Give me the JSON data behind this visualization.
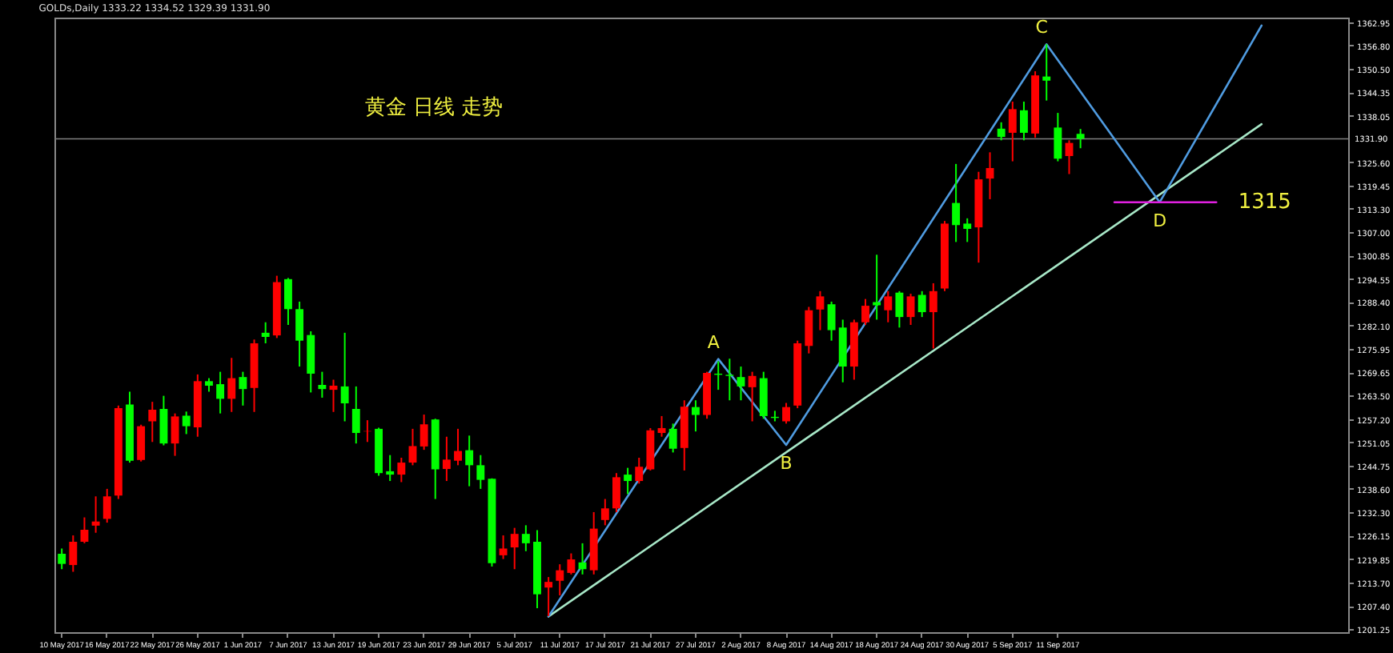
{
  "chart_data": {
    "type": "candlestick",
    "title": "GOLDs,Daily 1333.22 1334.52 1329.39 1331.90",
    "annotations": [
      "黄金 日线 走势",
      "1315",
      {
        "text": "A",
        "y": 1273.2
      },
      {
        "text": "B",
        "y": 1250.3
      },
      {
        "text": "C",
        "y": 1357.1
      },
      {
        "text": "D",
        "y": 1315
      }
    ],
    "categories": [
      "10 May 2017",
      null,
      null,
      null,
      "16 May 2017",
      null,
      null,
      null,
      "22 May 2017",
      null,
      null,
      null,
      "26 May 2017",
      null,
      null,
      null,
      "1 Jun 2017",
      null,
      null,
      null,
      "7 Jun 2017",
      null,
      null,
      null,
      "13 Jun 2017",
      null,
      null,
      null,
      "19 Jun 2017",
      null,
      null,
      null,
      "23 Jun 2017",
      null,
      null,
      null,
      "29 Jun 2017",
      null,
      null,
      null,
      "5 Jul 2017",
      null,
      null,
      null,
      "11 Jul 2017",
      null,
      null,
      null,
      "17 Jul 2017",
      null,
      null,
      null,
      "21 Jul 2017",
      null,
      null,
      null,
      "27 Jul 2017",
      null,
      null,
      null,
      "2 Aug 2017",
      null,
      null,
      null,
      "8 Aug 2017",
      null,
      null,
      null,
      "14 Aug 2017",
      null,
      null,
      null,
      "18 Aug 2017",
      null,
      null,
      null,
      "24 Aug 2017",
      null,
      null,
      null,
      "30 Aug 2017",
      null,
      null,
      null,
      "5 Sep 2017",
      null,
      null,
      null,
      "11 Sep 2017",
      null,
      null,
      null,
      null,
      null,
      null,
      null,
      null,
      null,
      null,
      null,
      null,
      null,
      null,
      null,
      null,
      null,
      null,
      null,
      null,
      null,
      null,
      null,
      null,
      null
    ],
    "ohlc": [
      [
        1221.3,
        1222.7,
        1217.2,
        1218.6
      ],
      [
        1218.3,
        1226.2,
        1216.5,
        1224.5
      ],
      [
        1224.5,
        1231.0,
        1224.1,
        1227.7
      ],
      [
        1228.8,
        1236.6,
        1226.9,
        1229.9
      ],
      [
        1230.6,
        1238.6,
        1229.6,
        1236.6
      ],
      [
        1236.8,
        1260.8,
        1235.9,
        1260.1
      ],
      [
        1261.1,
        1264.5,
        1245.6,
        1246.1
      ],
      [
        1246.3,
        1255.7,
        1245.9,
        1255.3
      ],
      [
        1256.6,
        1261.8,
        1251.1,
        1259.7
      ],
      [
        1259.9,
        1263.4,
        1250.2,
        1250.7
      ],
      [
        1250.7,
        1258.7,
        1247.4,
        1257.9
      ],
      [
        1258.1,
        1259.2,
        1253.2,
        1255.3
      ],
      [
        1255.0,
        1269.1,
        1252.5,
        1267.3
      ],
      [
        1267.3,
        1268.1,
        1264.5,
        1266.1
      ],
      [
        1266.5,
        1269.8,
        1258.7,
        1262.6
      ],
      [
        1262.6,
        1273.5,
        1259.1,
        1268.1
      ],
      [
        1268.4,
        1269.8,
        1260.8,
        1265.2
      ],
      [
        1265.5,
        1278.4,
        1259.1,
        1277.4
      ],
      [
        1280.2,
        1283.0,
        1277.4,
        1279.1
      ],
      [
        1279.5,
        1295.4,
        1278.8,
        1293.7
      ],
      [
        1294.5,
        1294.8,
        1282.3,
        1286.5
      ],
      [
        1286.5,
        1288.5,
        1271.2,
        1278.1
      ],
      [
        1279.6,
        1280.6,
        1264.3,
        1269.3
      ],
      [
        1266.3,
        1269.8,
        1262.9,
        1265.2
      ],
      [
        1265.0,
        1267.7,
        1259.1,
        1266.1
      ],
      [
        1265.9,
        1280.2,
        1256.6,
        1261.4
      ],
      [
        1259.9,
        1265.9,
        1250.7,
        1253.5
      ],
      [
        1253.9,
        1256.9,
        1251.1,
        1254.0
      ],
      [
        1254.6,
        1254.9,
        1242.1,
        1242.8
      ],
      [
        1243.3,
        1247.6,
        1240.7,
        1242.4
      ],
      [
        1242.4,
        1246.9,
        1240.4,
        1245.6
      ],
      [
        1245.6,
        1254.6,
        1244.9,
        1250.0
      ],
      [
        1249.9,
        1258.4,
        1249.0,
        1255.8
      ],
      [
        1257.1,
        1257.3,
        1235.9,
        1243.8
      ],
      [
        1243.9,
        1252.5,
        1240.7,
        1246.4
      ],
      [
        1246.1,
        1254.6,
        1244.9,
        1248.7
      ],
      [
        1248.9,
        1252.8,
        1239.3,
        1244.9
      ],
      [
        1244.9,
        1247.6,
        1238.6,
        1241.0
      ],
      [
        1241.3,
        1241.4,
        1217.9,
        1218.8
      ],
      [
        1220.9,
        1226.2,
        1219.9,
        1222.7
      ],
      [
        1223.0,
        1228.2,
        1217.2,
        1226.6
      ],
      [
        1226.6,
        1228.9,
        1222.0,
        1224.1
      ],
      [
        1224.5,
        1227.6,
        1206.8,
        1210.5
      ],
      [
        1212.3,
        1215.1,
        1204.7,
        1213.8
      ],
      [
        1214.1,
        1218.5,
        1210.2,
        1216.9
      ],
      [
        1216.2,
        1221.4,
        1215.8,
        1219.8
      ],
      [
        1219.0,
        1224.1,
        1215.8,
        1217.2
      ],
      [
        1216.9,
        1232.4,
        1215.8,
        1228.0
      ],
      [
        1230.3,
        1235.9,
        1228.9,
        1233.4
      ],
      [
        1233.4,
        1242.8,
        1232.4,
        1241.7
      ],
      [
        1242.4,
        1244.2,
        1237.2,
        1240.7
      ],
      [
        1240.7,
        1246.9,
        1240.0,
        1244.5
      ],
      [
        1243.8,
        1254.8,
        1243.5,
        1254.2
      ],
      [
        1253.5,
        1258.0,
        1252.5,
        1254.8
      ],
      [
        1254.6,
        1256.0,
        1248.3,
        1249.3
      ],
      [
        1249.5,
        1262.2,
        1243.5,
        1260.5
      ],
      [
        1260.4,
        1262.2,
        1253.9,
        1258.3
      ],
      [
        1258.3,
        1269.8,
        1257.3,
        1269.5
      ],
      [
        1269.3,
        1272.6,
        1265.0,
        1269.0
      ],
      [
        1269.0,
        1273.3,
        1262.2,
        1268.7
      ],
      [
        1268.4,
        1271.2,
        1262.2,
        1265.9
      ],
      [
        1265.7,
        1269.8,
        1256.6,
        1268.7
      ],
      [
        1268.1,
        1269.8,
        1257.3,
        1258.0
      ],
      [
        1257.8,
        1259.4,
        1256.6,
        1257.5
      ],
      [
        1256.6,
        1261.5,
        1256.0,
        1260.4
      ],
      [
        1260.8,
        1278.1,
        1260.1,
        1277.4
      ],
      [
        1276.7,
        1287.1,
        1274.7,
        1286.2
      ],
      [
        1286.4,
        1291.3,
        1280.9,
        1289.9
      ],
      [
        1287.8,
        1288.5,
        1278.1,
        1280.9
      ],
      [
        1281.6,
        1283.7,
        1267.0,
        1271.2
      ],
      [
        1271.2,
        1283.7,
        1267.7,
        1283.0
      ],
      [
        1283.0,
        1289.2,
        1282.3,
        1287.4
      ],
      [
        1288.4,
        1301.0,
        1283.7,
        1287.5
      ],
      [
        1286.2,
        1291.3,
        1283.0,
        1289.9
      ],
      [
        1290.9,
        1291.3,
        1281.6,
        1284.4
      ],
      [
        1284.4,
        1290.6,
        1282.3,
        1289.9
      ],
      [
        1290.3,
        1291.3,
        1284.4,
        1285.7
      ],
      [
        1285.7,
        1293.4,
        1276.0,
        1291.3
      ],
      [
        1292.0,
        1310.0,
        1291.3,
        1309.3
      ],
      [
        1314.8,
        1325.2,
        1304.4,
        1308.9
      ],
      [
        1309.3,
        1310.7,
        1304.4,
        1307.9
      ],
      [
        1308.3,
        1323.1,
        1298.9,
        1321.1
      ],
      [
        1321.3,
        1328.3,
        1315.8,
        1324.1
      ],
      [
        1334.6,
        1336.3,
        1331.5,
        1332.4
      ],
      [
        1333.5,
        1341.8,
        1325.9,
        1339.8
      ],
      [
        1339.5,
        1341.8,
        1331.5,
        1333.5
      ],
      [
        1333.3,
        1349.9,
        1332.2,
        1348.8
      ],
      [
        1348.5,
        1357.1,
        1342.1,
        1347.4
      ],
      [
        1334.9,
        1338.8,
        1325.9,
        1326.6
      ],
      [
        1327.3,
        1331.5,
        1322.5,
        1330.8
      ],
      [
        1333.22,
        1334.52,
        1329.39,
        1331.9
      ],
      null,
      null,
      null,
      null,
      null,
      null,
      null,
      null,
      null,
      null,
      null,
      null,
      null,
      null,
      null,
      null,
      null,
      null,
      null,
      null,
      null,
      null,
      null
    ],
    "colors": [
      "#00ff00",
      "#ff0000",
      "#ff0000",
      "#ff0000",
      "#ff0000",
      "#ff0000",
      "#00ff00",
      "#ff0000",
      "#ff0000",
      "#00ff00",
      "#ff0000",
      "#00ff00",
      "#ff0000",
      "#00ff00",
      "#00ff00",
      "#ff0000",
      "#00ff00",
      "#ff0000",
      "#00ff00",
      "#ff0000",
      "#00ff00",
      "#00ff00",
      "#00ff00",
      "#00ff00",
      "#ff0000",
      "#00ff00",
      "#00ff00",
      "#ff0000",
      "#00ff00",
      "#00ff00",
      "#ff0000",
      "#ff0000",
      "#ff0000",
      "#00ff00",
      "#ff0000",
      "#ff0000",
      "#00ff00",
      "#00ff00",
      "#00ff00",
      "#ff0000",
      "#ff0000",
      "#00ff00",
      "#00ff00",
      "#ff0000",
      "#ff0000",
      "#ff0000",
      "#00ff00",
      "#ff0000",
      "#ff0000",
      "#ff0000",
      "#00ff00",
      "#ff0000",
      "#ff0000",
      "#ff0000",
      "#00ff00",
      "#ff0000",
      "#00ff00",
      "#ff0000",
      "#00ff00",
      "#00ff00",
      "#00ff00",
      "#ff0000",
      "#00ff00",
      "#00ff00",
      "#ff0000",
      "#ff0000",
      "#ff0000",
      "#ff0000",
      "#00ff00",
      "#00ff00",
      "#ff0000",
      "#ff0000",
      "#00ff00",
      "#ff0000",
      "#00ff00",
      "#ff0000",
      "#00ff00",
      "#ff0000",
      "#ff0000",
      "#00ff00",
      "#00ff00",
      "#ff0000",
      "#ff0000",
      "#00ff00",
      "#ff0000",
      "#00ff00",
      "#ff0000",
      "#00ff00",
      "#00ff00",
      "#ff0000",
      "#00ff00",
      null,
      null,
      null,
      null,
      null,
      null,
      null,
      null,
      null,
      null,
      null,
      null,
      null,
      null,
      null,
      null,
      null,
      null,
      null,
      null,
      null,
      null,
      null
    ],
    "series": [
      {
        "type": "line",
        "color": "#a8e8c8",
        "values": [
          null,
          null,
          null,
          null,
          null,
          null,
          null,
          null,
          null,
          null,
          null,
          null,
          null,
          null,
          null,
          null,
          null,
          null,
          null,
          null,
          null,
          null,
          null,
          null,
          null,
          null,
          null,
          null,
          null,
          null,
          null,
          null,
          null,
          null,
          null,
          null,
          null,
          null,
          null,
          null,
          null,
          null,
          null,
          1204.6,
          null,
          null,
          null,
          null,
          null,
          null,
          null,
          null,
          null,
          null,
          null,
          null,
          null,
          null,
          null,
          null,
          null,
          null,
          null,
          null,
          null,
          null,
          null,
          null,
          null,
          null,
          null,
          null,
          null,
          null,
          null,
          null,
          null,
          null,
          null,
          null,
          null,
          null,
          null,
          null,
          null,
          null,
          null,
          null,
          null,
          null,
          null,
          null,
          null,
          null,
          null,
          null,
          null,
          null,
          null,
          null,
          null,
          null,
          null,
          null,
          null,
          null,
          1335.8,
          null,
          null,
          null,
          null,
          null,
          null,
          null
        ]
      },
      {
        "type": "line",
        "color": "#4f9be0",
        "values": [
          null,
          null,
          null,
          null,
          null,
          null,
          null,
          null,
          null,
          null,
          null,
          null,
          null,
          null,
          null,
          null,
          null,
          null,
          null,
          null,
          null,
          null,
          null,
          null,
          null,
          null,
          null,
          null,
          null,
          null,
          null,
          null,
          null,
          null,
          null,
          null,
          null,
          null,
          null,
          null,
          null,
          null,
          null,
          1204.6,
          null,
          null,
          null,
          null,
          null,
          null,
          null,
          null,
          null,
          null,
          null,
          null,
          null,
          null,
          1273.2,
          null,
          null,
          null,
          null,
          null,
          1250.3,
          null,
          null,
          null,
          null,
          null,
          null,
          null,
          null,
          null,
          null,
          null,
          null,
          null,
          null,
          null,
          null,
          null,
          null,
          null,
          null,
          null,
          null,
          1357.1,
          null,
          null,
          null,
          null,
          null,
          null,
          null,
          null,
          null,
          1315,
          null,
          null,
          null,
          null,
          null,
          null,
          null,
          null,
          1362.1,
          null,
          null,
          null,
          null,
          null,
          null,
          null
        ]
      },
      {
        "type": "line",
        "color": "#e020e0",
        "values": [
          null,
          null,
          null,
          null,
          null,
          null,
          null,
          null,
          null,
          null,
          null,
          null,
          null,
          null,
          null,
          null,
          null,
          null,
          null,
          null,
          null,
          null,
          null,
          null,
          null,
          null,
          null,
          null,
          null,
          null,
          null,
          null,
          null,
          null,
          null,
          null,
          null,
          null,
          null,
          null,
          null,
          null,
          null,
          null,
          null,
          null,
          null,
          null,
          null,
          null,
          null,
          null,
          null,
          null,
          null,
          null,
          null,
          null,
          null,
          null,
          null,
          null,
          null,
          null,
          null,
          null,
          null,
          null,
          null,
          null,
          null,
          null,
          null,
          null,
          null,
          null,
          null,
          null,
          null,
          null,
          null,
          null,
          null,
          null,
          null,
          null,
          null,
          null,
          null,
          null,
          null,
          null,
          null,
          1315,
          null,
          null,
          null,
          null,
          null,
          null,
          null,
          null,
          1315,
          null,
          null,
          null,
          null,
          null,
          null,
          null,
          null,
          null,
          null,
          null
        ]
      }
    ],
    "ylim": [
      1200.4,
      1364.2
    ],
    "yticks": [
      1362.95,
      {
        "value": 1356.8,
        "label": "1356.80"
      },
      {
        "value": 1350.5,
        "label": "1350.50"
      },
      1344.35,
      1338.05,
      {
        "value": 1325.6,
        "label": "1325.60"
      },
      1319.45,
      {
        "value": 1313.3,
        "label": "1313.30"
      },
      {
        "value": 1307,
        "label": "1307.00"
      },
      1300.85,
      1294.55,
      {
        "value": 1288.4,
        "label": "1288.40"
      },
      {
        "value": 1282.1,
        "label": "1282.10"
      },
      1275.95,
      1269.65,
      {
        "value": 1263.5,
        "label": "1263.50"
      },
      {
        "value": 1257.2,
        "label": "1257.20"
      },
      1251.05,
      1244.75,
      {
        "value": 1238.6,
        "label": "1238.60"
      },
      {
        "value": 1232.3,
        "label": "1232.30"
      },
      1226.15,
      1219.85,
      {
        "value": 1213.7,
        "label": "1213.70"
      },
      {
        "value": 1207.4,
        "label": "1207.40"
      },
      1201.25
    ],
    "ref_lines": [
      {
        "axis": "y",
        "value": 1331.9,
        "label": "1331.90",
        "color": "#808080"
      }
    ]
  }
}
